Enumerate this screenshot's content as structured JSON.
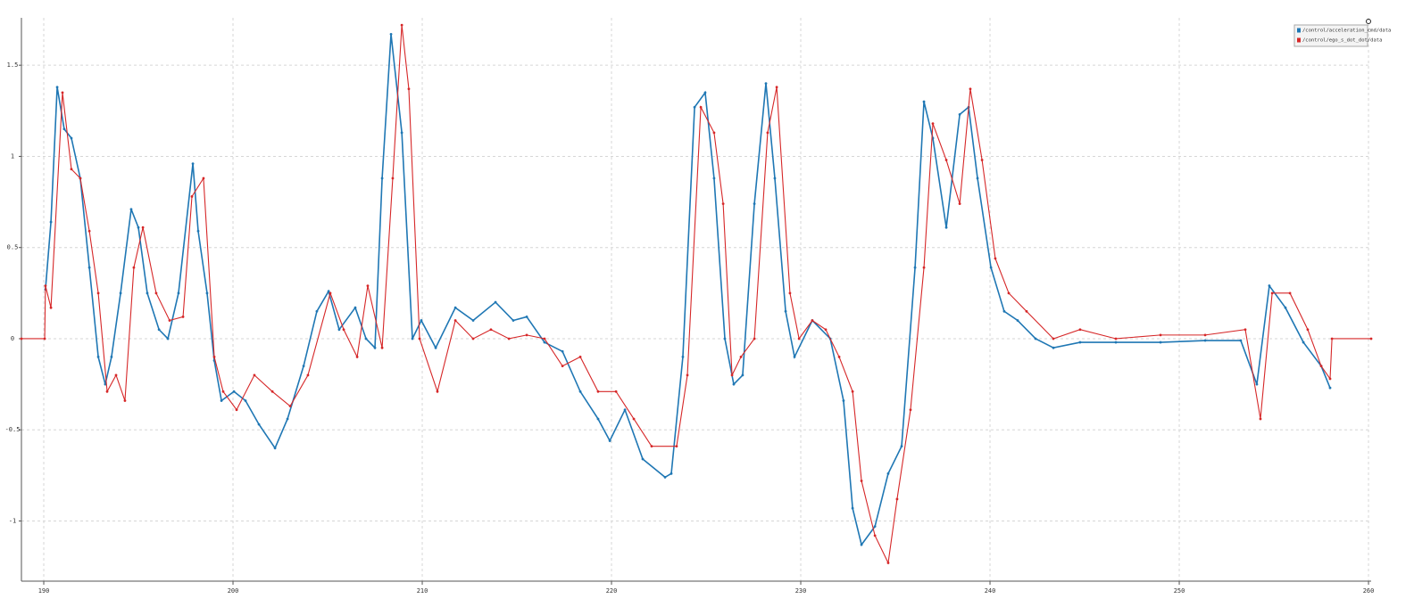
{
  "chart_data": {
    "type": "line",
    "legend": "top-right",
    "grid": true,
    "xlim": [
      188.82,
      260.14
    ],
    "xticks": [
      190,
      200,
      210,
      220,
      230,
      240,
      250,
      260
    ],
    "ylim": [
      -1.33,
      1.76
    ],
    "yticks": [
      -1,
      -0.5,
      0,
      0.5,
      1,
      1.5
    ],
    "series": [
      {
        "name": "/control/acceleration_cmd/data",
        "color": "#1f77b4",
        "x": [
          190.09,
          190.38,
          190.71,
          191.08,
          191.46,
          191.93,
          192.41,
          192.88,
          193.25,
          193.58,
          194.06,
          194.62,
          195.0,
          195.47,
          196.09,
          196.56,
          197.12,
          197.88,
          198.16,
          198.63,
          199.01,
          199.39,
          200.05,
          200.66,
          201.37,
          202.22,
          202.88,
          203.73,
          204.43,
          205.05,
          205.61,
          206.46,
          207.03,
          207.5,
          207.88,
          208.35,
          208.92,
          209.48,
          209.95,
          210.71,
          211.75,
          212.69,
          213.87,
          214.81,
          215.52,
          216.46,
          217.41,
          218.35,
          219.29,
          219.91,
          220.71,
          221.65,
          222.83,
          223.16,
          223.77,
          224.39,
          224.95,
          225.42,
          225.99,
          226.46,
          226.93,
          227.55,
          228.16,
          228.63,
          229.2,
          229.67,
          230.61,
          231.56,
          232.26,
          232.74,
          233.21,
          233.92,
          234.62,
          235.33,
          236.04,
          236.51,
          236.98,
          237.69,
          238.4,
          238.87,
          239.34,
          240.05,
          240.75,
          241.46,
          242.41,
          243.35,
          244.76,
          246.65,
          249.01,
          251.37,
          253.25,
          254.1,
          254.76,
          255.61,
          256.56,
          257.5,
          257.97
        ],
        "values": [
          0.27,
          0.64,
          1.38,
          1.15,
          1.1,
          0.88,
          0.39,
          -0.1,
          -0.25,
          -0.1,
          0.25,
          0.71,
          0.61,
          0.25,
          0.05,
          0,
          0.25,
          0.96,
          0.59,
          0.25,
          -0.12,
          -0.34,
          -0.29,
          -0.34,
          -0.47,
          -0.6,
          -0.44,
          -0.15,
          0.15,
          0.26,
          0.05,
          0.17,
          0,
          -0.05,
          0.88,
          1.67,
          1.13,
          0,
          0.1,
          -0.05,
          0.17,
          0.1,
          0.2,
          0.1,
          0.12,
          -0.02,
          -0.07,
          -0.29,
          -0.44,
          -0.56,
          -0.39,
          -0.66,
          -0.76,
          -0.74,
          -0.1,
          1.27,
          1.35,
          0.88,
          0,
          -0.25,
          -0.2,
          0.74,
          1.4,
          0.88,
          0.15,
          -0.1,
          0.1,
          0,
          -0.34,
          -0.93,
          -1.13,
          -1.03,
          -0.74,
          -0.59,
          0.39,
          1.3,
          1.1,
          0.61,
          1.23,
          1.27,
          0.88,
          0.39,
          0.15,
          0.1,
          0,
          -0.05,
          -0.02,
          -0.02,
          -0.02,
          -0.01,
          -0.01,
          -0.25,
          0.29,
          0.17,
          -0.02,
          -0.15,
          -0.27
        ]
      },
      {
        "name": "/control/ego_s_dot_dot/data",
        "color": "#d62728",
        "x": [
          188.82,
          190.05,
          190.09,
          190.38,
          190.99,
          191.46,
          191.93,
          192.41,
          192.88,
          193.35,
          193.82,
          194.29,
          194.76,
          195.24,
          195.94,
          196.65,
          197.36,
          197.83,
          198.44,
          199.01,
          199.48,
          200.19,
          201.13,
          202.08,
          203.02,
          203.96,
          205.14,
          205.85,
          206.56,
          207.12,
          207.88,
          208.44,
          208.92,
          209.29,
          209.86,
          210.8,
          211.75,
          212.69,
          213.63,
          214.58,
          215.52,
          216.46,
          217.41,
          218.35,
          219.29,
          220.24,
          221.18,
          222.12,
          223.44,
          224.01,
          224.72,
          225.42,
          225.9,
          226.37,
          226.84,
          227.55,
          228.25,
          228.73,
          229.43,
          229.91,
          230.61,
          231.32,
          232.03,
          232.74,
          233.21,
          233.92,
          234.62,
          235.09,
          235.8,
          236.51,
          236.98,
          237.69,
          238.4,
          238.96,
          239.58,
          240.28,
          240.99,
          241.93,
          243.35,
          244.76,
          246.65,
          249.01,
          251.37,
          253.49,
          254.29,
          254.91,
          255.85,
          256.79,
          257.5,
          257.97,
          258.07,
          260.14
        ],
        "values": [
          0,
          0,
          0.29,
          0.17,
          1.35,
          0.93,
          0.88,
          0.59,
          0.25,
          -0.29,
          -0.2,
          -0.34,
          0.39,
          0.61,
          0.25,
          0.1,
          0.12,
          0.78,
          0.88,
          -0.1,
          -0.29,
          -0.39,
          -0.2,
          -0.29,
          -0.37,
          -0.2,
          0.25,
          0.05,
          -0.1,
          0.29,
          -0.05,
          0.88,
          1.72,
          1.37,
          0,
          -0.29,
          0.1,
          0,
          0.05,
          0,
          0.02,
          0,
          -0.15,
          -0.1,
          -0.29,
          -0.29,
          -0.44,
          -0.59,
          -0.59,
          -0.2,
          1.27,
          1.13,
          0.74,
          -0.2,
          -0.1,
          0,
          1.13,
          1.38,
          0.25,
          0,
          0.1,
          0.05,
          -0.1,
          -0.29,
          -0.78,
          -1.08,
          -1.23,
          -0.88,
          -0.39,
          0.39,
          1.18,
          0.98,
          0.74,
          1.37,
          0.98,
          0.44,
          0.25,
          0.15,
          0,
          0.05,
          0,
          0.02,
          0.02,
          0.05,
          -0.44,
          0.25,
          0.25,
          0.05,
          -0.15,
          -0.22,
          0,
          0
        ]
      }
    ]
  }
}
